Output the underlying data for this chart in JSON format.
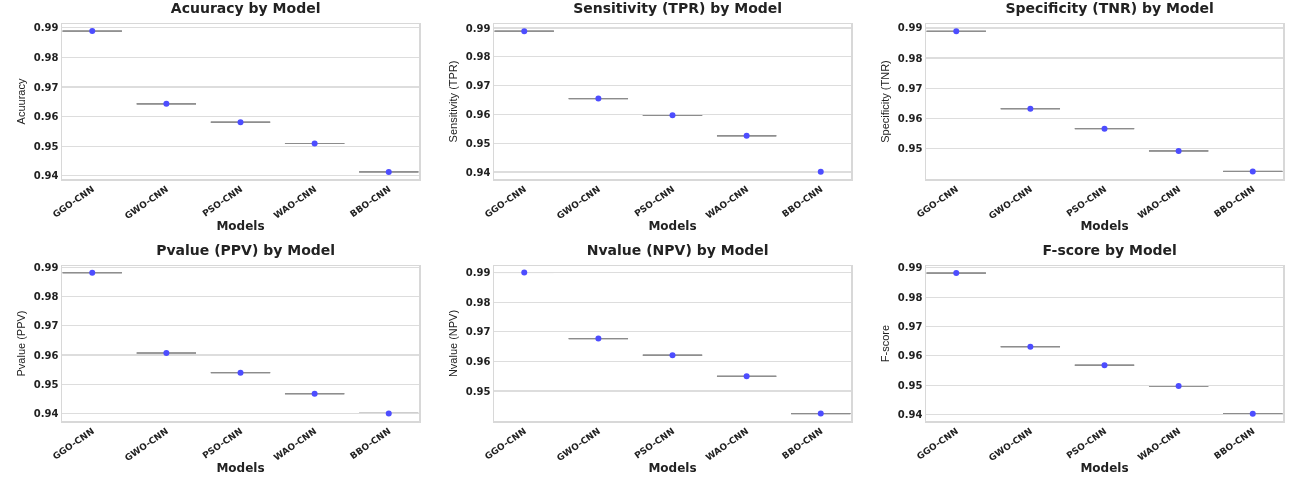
{
  "chart_data": [
    {
      "type": "box",
      "title": "Acuuracy by Model",
      "xlabel": "Models",
      "ylabel": "Acuuracy",
      "categories": [
        "GGO-CNN",
        "GWO-CNN",
        "PSO-CNN",
        "WAO-CNN",
        "BBO-CNN"
      ],
      "ylim": [
        0.9389,
        0.9913
      ],
      "yticks": [
        0.94,
        0.95,
        0.96,
        0.97,
        0.98,
        0.99
      ],
      "grid": "y",
      "marker": "circle",
      "series": [
        {
          "type": "box",
          "color": "#8c8c8c",
          "boxes": [
            {
              "low": 0.9889,
              "q1": 0.9889,
              "median": 0.9889,
              "q3": 0.9889,
              "high": 0.9889
            },
            {
              "low": 0.9643,
              "q1": 0.9643,
              "median": 0.9643,
              "q3": 0.9643,
              "high": 0.9643
            },
            {
              "low": 0.9581,
              "q1": 0.9581,
              "median": 0.9581,
              "q3": 0.9581,
              "high": 0.9581
            },
            {
              "low": 0.9509,
              "q1": 0.9509,
              "median": 0.9509,
              "q3": 0.9509,
              "high": 0.9509
            },
            {
              "low": 0.9413,
              "q1": 0.9413,
              "median": 0.9413,
              "q3": 0.9413,
              "high": 0.9413
            }
          ]
        },
        {
          "type": "scatter",
          "color": "#4d4dff",
          "x": [
            "GGO-CNN",
            "GWO-CNN",
            "PSO-CNN",
            "WAO-CNN",
            "BBO-CNN"
          ],
          "values": [
            0.9889,
            0.9643,
            0.9581,
            0.9509,
            0.9413
          ]
        }
      ]
    },
    {
      "type": "box",
      "title": "Sensitivity (TPR) by Model",
      "xlabel": "Models",
      "ylabel": "Sensitivity (TPR)",
      "categories": [
        "GGO-CNN",
        "GWO-CNN",
        "PSO-CNN",
        "WAO-CNN",
        "BBO-CNN"
      ],
      "ylim": [
        0.9376,
        0.9914
      ],
      "yticks": [
        0.94,
        0.95,
        0.96,
        0.97,
        0.98,
        0.99
      ],
      "grid": "y",
      "marker": "circle",
      "series": [
        {
          "type": "box",
          "color": "#8c8c8c",
          "boxes": [
            {
              "low": 0.9889,
              "q1": 0.9889,
              "median": 0.9889,
              "q3": 0.9889,
              "high": 0.9889
            },
            {
              "low": 0.9655,
              "q1": 0.9655,
              "median": 0.9655,
              "q3": 0.9655,
              "high": 0.9655
            },
            {
              "low": 0.9597,
              "q1": 0.9597,
              "median": 0.9597,
              "q3": 0.9597,
              "high": 0.9597
            },
            {
              "low": 0.9526,
              "q1": 0.9526,
              "median": 0.9526,
              "q3": 0.9526,
              "high": 0.9526
            },
            {
              "low": 0.9401,
              "q1": 0.9401,
              "median": 0.9401,
              "q3": 0.9401,
              "high": 0.9401
            }
          ]
        },
        {
          "type": "scatter",
          "color": "#4d4dff",
          "x": [
            "GGO-CNN",
            "GWO-CNN",
            "PSO-CNN",
            "WAO-CNN",
            "BBO-CNN"
          ],
          "values": [
            0.9889,
            0.9655,
            0.9597,
            0.9526,
            0.9401
          ]
        }
      ]
    },
    {
      "type": "box",
      "title": "Specificity (TNR) by Model",
      "xlabel": "Models",
      "ylabel": "Specificity (TNR)",
      "categories": [
        "GGO-CNN",
        "GWO-CNN",
        "PSO-CNN",
        "WAO-CNN",
        "BBO-CNN"
      ],
      "ylim": [
        0.9399,
        0.9913
      ],
      "yticks": [
        0.95,
        0.96,
        0.97,
        0.98,
        0.99
      ],
      "grid": "y",
      "marker": "circle",
      "series": [
        {
          "type": "box",
          "color": "#8c8c8c",
          "boxes": [
            {
              "low": 0.9889,
              "q1": 0.9889,
              "median": 0.9889,
              "q3": 0.9889,
              "high": 0.9889
            },
            {
              "low": 0.9632,
              "q1": 0.9632,
              "median": 0.9632,
              "q3": 0.9632,
              "high": 0.9632
            },
            {
              "low": 0.9566,
              "q1": 0.9566,
              "median": 0.9566,
              "q3": 0.9566,
              "high": 0.9566
            },
            {
              "low": 0.9492,
              "q1": 0.9492,
              "median": 0.9492,
              "q3": 0.9492,
              "high": 0.9492
            },
            {
              "low": 0.9424,
              "q1": 0.9424,
              "median": 0.9424,
              "q3": 0.9424,
              "high": 0.9424
            }
          ]
        },
        {
          "type": "scatter",
          "color": "#4d4dff",
          "x": [
            "GGO-CNN",
            "GWO-CNN",
            "PSO-CNN",
            "WAO-CNN",
            "BBO-CNN"
          ],
          "values": [
            0.9889,
            0.9632,
            0.9566,
            0.9492,
            0.9424
          ]
        }
      ]
    },
    {
      "type": "box",
      "title": "Pvalue (PPV) by Model",
      "xlabel": "Models",
      "ylabel": "Pvalue (PPV)",
      "categories": [
        "GGO-CNN",
        "GWO-CNN",
        "PSO-CNN",
        "WAO-CNN",
        "BBO-CNN"
      ],
      "ylim": [
        0.9375,
        0.9904
      ],
      "yticks": [
        0.94,
        0.95,
        0.96,
        0.97,
        0.98,
        0.99
      ],
      "grid": "y",
      "marker": "circle",
      "series": [
        {
          "type": "box",
          "color": "#8c8c8c",
          "boxes": [
            {
              "low": 0.9881,
              "q1": 0.9881,
              "median": 0.9881,
              "q3": 0.9881,
              "high": 0.9881
            },
            {
              "low": 0.9607,
              "q1": 0.9607,
              "median": 0.9607,
              "q3": 0.9607,
              "high": 0.9607
            },
            {
              "low": 0.954,
              "q1": 0.954,
              "median": 0.954,
              "q3": 0.954,
              "high": 0.954
            },
            {
              "low": 0.9468,
              "q1": 0.9468,
              "median": 0.9468,
              "q3": 0.9468,
              "high": 0.9468
            },
            {
              "low": 0.9401,
              "q1": 0.9401,
              "median": 0.9401,
              "q3": 0.9401,
              "high": 0.9401
            }
          ]
        },
        {
          "type": "scatter",
          "color": "#4d4dff",
          "x": [
            "GGO-CNN",
            "GWO-CNN",
            "PSO-CNN",
            "WAO-CNN",
            "BBO-CNN"
          ],
          "values": [
            0.9881,
            0.9607,
            0.954,
            0.9468,
            0.9401
          ]
        }
      ]
    },
    {
      "type": "box",
      "title": "Nvalue (NPV) by Model",
      "xlabel": "Models",
      "ylabel": "Nvalue (NPV)",
      "categories": [
        "GGO-CNN",
        "GWO-CNN",
        "PSO-CNN",
        "WAO-CNN",
        "BBO-CNN"
      ],
      "ylim": [
        0.9399,
        0.9922
      ],
      "yticks": [
        0.95,
        0.96,
        0.97,
        0.98,
        0.99
      ],
      "grid": "y",
      "marker": "circle",
      "series": [
        {
          "type": "box",
          "color": "#8c8c8c",
          "boxes": [
            {
              "low": 0.99,
              "q1": 0.99,
              "median": 0.99,
              "q3": 0.99,
              "high": 0.99
            },
            {
              "low": 0.9677,
              "q1": 0.9677,
              "median": 0.9677,
              "q3": 0.9677,
              "high": 0.9677
            },
            {
              "low": 0.9621,
              "q1": 0.9621,
              "median": 0.9621,
              "q3": 0.9621,
              "high": 0.9621
            },
            {
              "low": 0.955,
              "q1": 0.955,
              "median": 0.955,
              "q3": 0.955,
              "high": 0.955
            },
            {
              "low": 0.9424,
              "q1": 0.9424,
              "median": 0.9424,
              "q3": 0.9424,
              "high": 0.9424
            }
          ]
        },
        {
          "type": "scatter",
          "color": "#4d4dff",
          "x": [
            "GGO-CNN",
            "GWO-CNN",
            "PSO-CNN",
            "WAO-CNN",
            "BBO-CNN"
          ],
          "values": [
            0.99,
            0.9677,
            0.9621,
            0.955,
            0.9424
          ]
        }
      ]
    },
    {
      "type": "box",
      "title": "F-score by Model",
      "xlabel": "Models",
      "ylabel": "F-score",
      "categories": [
        "GGO-CNN",
        "GWO-CNN",
        "PSO-CNN",
        "WAO-CNN",
        "BBO-CNN"
      ],
      "ylim": [
        0.9378,
        0.9906
      ],
      "yticks": [
        0.94,
        0.95,
        0.96,
        0.97,
        0.98,
        0.99
      ],
      "grid": "y",
      "marker": "circle",
      "series": [
        {
          "type": "box",
          "color": "#8c8c8c",
          "boxes": [
            {
              "low": 0.9882,
              "q1": 0.9882,
              "median": 0.9882,
              "q3": 0.9882,
              "high": 0.9882
            },
            {
              "low": 0.9631,
              "q1": 0.9631,
              "median": 0.9631,
              "q3": 0.9631,
              "high": 0.9631
            },
            {
              "low": 0.9568,
              "q1": 0.9568,
              "median": 0.9568,
              "q3": 0.9568,
              "high": 0.9568
            },
            {
              "low": 0.9497,
              "q1": 0.9497,
              "median": 0.9497,
              "q3": 0.9497,
              "high": 0.9497
            },
            {
              "low": 0.9403,
              "q1": 0.9403,
              "median": 0.9403,
              "q3": 0.9403,
              "high": 0.9403
            }
          ]
        },
        {
          "type": "scatter",
          "color": "#4d4dff",
          "x": [
            "GGO-CNN",
            "GWO-CNN",
            "PSO-CNN",
            "WAO-CNN",
            "BBO-CNN"
          ],
          "values": [
            0.9882,
            0.9631,
            0.9568,
            0.9497,
            0.9403
          ]
        }
      ]
    }
  ]
}
